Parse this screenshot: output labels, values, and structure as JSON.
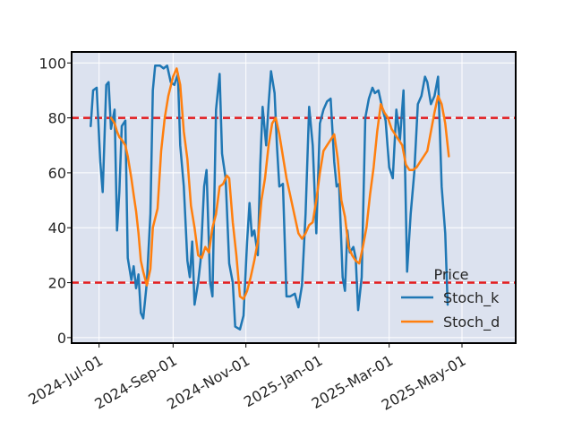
{
  "chart_data": {
    "type": "line",
    "title": "",
    "xlabel": "",
    "ylabel": "",
    "x_range": [
      "2024-06-08",
      "2025-06-15"
    ],
    "ylim": [
      -2,
      104
    ],
    "y_ticks": [
      0,
      20,
      40,
      60,
      80,
      100
    ],
    "x_ticks": [
      {
        "date": "2024-07-01",
        "label": "2024-Jul-01"
      },
      {
        "date": "2024-09-01",
        "label": "2024-Sep-01"
      },
      {
        "date": "2024-11-01",
        "label": "2024-Nov-01"
      },
      {
        "date": "2025-01-01",
        "label": "2025-Jan-01"
      },
      {
        "date": "2025-03-01",
        "label": "2025-Mar-01"
      },
      {
        "date": "2025-05-01",
        "label": "2025-May-01"
      }
    ],
    "grid": true,
    "background": "#dce2ef",
    "legend": {
      "title": "Price",
      "position": "bottom-right"
    },
    "reference_lines": [
      {
        "y": 80,
        "color": "#e31a1c",
        "style": "dashed"
      },
      {
        "y": 20,
        "color": "#e31a1c",
        "style": "dashed"
      }
    ],
    "series": [
      {
        "name": "Stoch_k",
        "color": "#1f77b4",
        "points": [
          [
            "2024-06-24",
            77
          ],
          [
            "2024-06-26",
            90
          ],
          [
            "2024-06-29",
            91
          ],
          [
            "2024-07-02",
            64
          ],
          [
            "2024-07-04",
            53
          ],
          [
            "2024-07-07",
            92
          ],
          [
            "2024-07-09",
            93
          ],
          [
            "2024-07-11",
            76
          ],
          [
            "2024-07-14",
            83
          ],
          [
            "2024-07-16",
            39
          ],
          [
            "2024-07-18",
            53
          ],
          [
            "2024-07-20",
            77
          ],
          [
            "2024-07-23",
            79
          ],
          [
            "2024-07-25",
            29
          ],
          [
            "2024-07-28",
            21
          ],
          [
            "2024-07-30",
            26
          ],
          [
            "2024-08-01",
            18
          ],
          [
            "2024-08-03",
            23
          ],
          [
            "2024-08-05",
            9
          ],
          [
            "2024-08-07",
            7
          ],
          [
            "2024-08-10",
            20
          ],
          [
            "2024-08-13",
            45
          ],
          [
            "2024-08-15",
            90
          ],
          [
            "2024-08-17",
            99
          ],
          [
            "2024-08-21",
            99
          ],
          [
            "2024-08-24",
            98
          ],
          [
            "2024-08-27",
            99
          ],
          [
            "2024-08-30",
            93
          ],
          [
            "2024-09-02",
            92
          ],
          [
            "2024-09-05",
            96
          ],
          [
            "2024-09-07",
            70
          ],
          [
            "2024-09-10",
            55
          ],
          [
            "2024-09-13",
            28
          ],
          [
            "2024-09-15",
            22
          ],
          [
            "2024-09-17",
            35
          ],
          [
            "2024-09-19",
            12
          ],
          [
            "2024-09-22",
            20
          ],
          [
            "2024-09-24",
            28
          ],
          [
            "2024-09-27",
            55
          ],
          [
            "2024-09-29",
            61
          ],
          [
            "2024-10-02",
            20
          ],
          [
            "2024-10-04",
            15
          ],
          [
            "2024-10-07",
            83
          ],
          [
            "2024-10-10",
            96
          ],
          [
            "2024-10-12",
            67
          ],
          [
            "2024-10-15",
            58
          ],
          [
            "2024-10-18",
            27
          ],
          [
            "2024-10-21",
            20
          ],
          [
            "2024-10-23",
            4
          ],
          [
            "2024-10-27",
            3
          ],
          [
            "2024-10-30",
            8
          ],
          [
            "2024-11-02",
            35
          ],
          [
            "2024-11-04",
            49
          ],
          [
            "2024-11-06",
            37
          ],
          [
            "2024-11-08",
            39
          ],
          [
            "2024-11-11",
            30
          ],
          [
            "2024-11-13",
            63
          ],
          [
            "2024-11-15",
            84
          ],
          [
            "2024-11-18",
            70
          ],
          [
            "2024-11-20",
            85
          ],
          [
            "2024-11-22",
            97
          ],
          [
            "2024-11-25",
            89
          ],
          [
            "2024-11-27",
            70
          ],
          [
            "2024-11-29",
            55
          ],
          [
            "2024-12-02",
            56
          ],
          [
            "2024-12-05",
            15
          ],
          [
            "2024-12-08",
            15
          ],
          [
            "2024-12-12",
            16
          ],
          [
            "2024-12-15",
            11
          ],
          [
            "2024-12-18",
            19
          ],
          [
            "2024-12-21",
            45
          ],
          [
            "2024-12-24",
            84
          ],
          [
            "2024-12-27",
            70
          ],
          [
            "2024-12-30",
            38
          ],
          [
            "2025-01-02",
            78
          ],
          [
            "2025-01-05",
            83
          ],
          [
            "2025-01-08",
            86
          ],
          [
            "2025-01-11",
            87
          ],
          [
            "2025-01-14",
            64
          ],
          [
            "2025-01-16",
            55
          ],
          [
            "2025-01-18",
            56
          ],
          [
            "2025-01-21",
            22
          ],
          [
            "2025-01-23",
            17
          ],
          [
            "2025-01-25",
            39
          ],
          [
            "2025-01-27",
            31
          ],
          [
            "2025-01-30",
            33
          ],
          [
            "2025-02-01",
            29
          ],
          [
            "2025-02-03",
            10
          ],
          [
            "2025-02-06",
            22
          ],
          [
            "2025-02-09",
            80
          ],
          [
            "2025-02-12",
            87
          ],
          [
            "2025-02-15",
            91
          ],
          [
            "2025-02-17",
            89
          ],
          [
            "2025-02-20",
            90
          ],
          [
            "2025-02-23",
            84
          ],
          [
            "2025-02-26",
            79
          ],
          [
            "2025-03-01",
            62
          ],
          [
            "2025-03-04",
            58
          ],
          [
            "2025-03-07",
            83
          ],
          [
            "2025-03-10",
            72
          ],
          [
            "2025-03-13",
            90
          ],
          [
            "2025-03-16",
            24
          ],
          [
            "2025-03-19",
            45
          ],
          [
            "2025-03-22",
            60
          ],
          [
            "2025-03-25",
            85
          ],
          [
            "2025-03-28",
            88
          ],
          [
            "2025-03-31",
            95
          ],
          [
            "2025-04-02",
            93
          ],
          [
            "2025-04-05",
            85
          ],
          [
            "2025-04-08",
            88
          ],
          [
            "2025-04-11",
            95
          ],
          [
            "2025-04-14",
            55
          ],
          [
            "2025-04-17",
            38
          ],
          [
            "2025-04-19",
            12
          ]
        ]
      },
      {
        "name": "Stoch_d",
        "color": "#ff7f0e",
        "points": [
          [
            "2024-07-11",
            80
          ],
          [
            "2024-07-14",
            78
          ],
          [
            "2024-07-16",
            75
          ],
          [
            "2024-07-18",
            73
          ],
          [
            "2024-07-20",
            72
          ],
          [
            "2024-07-23",
            70
          ],
          [
            "2024-07-25",
            66
          ],
          [
            "2024-07-28",
            58
          ],
          [
            "2024-07-30",
            52
          ],
          [
            "2024-08-01",
            46
          ],
          [
            "2024-08-03",
            38
          ],
          [
            "2024-08-05",
            28
          ],
          [
            "2024-08-07",
            24
          ],
          [
            "2024-08-10",
            19
          ],
          [
            "2024-08-13",
            25
          ],
          [
            "2024-08-15",
            40
          ],
          [
            "2024-08-19",
            47
          ],
          [
            "2024-08-22",
            68
          ],
          [
            "2024-08-25",
            80
          ],
          [
            "2024-08-28",
            88
          ],
          [
            "2024-09-01",
            95
          ],
          [
            "2024-09-04",
            98
          ],
          [
            "2024-09-07",
            92
          ],
          [
            "2024-09-10",
            75
          ],
          [
            "2024-09-13",
            65
          ],
          [
            "2024-09-16",
            48
          ],
          [
            "2024-09-19",
            40
          ],
          [
            "2024-09-22",
            30
          ],
          [
            "2024-09-25",
            29
          ],
          [
            "2024-09-28",
            33
          ],
          [
            "2024-10-01",
            31
          ],
          [
            "2024-10-04",
            40
          ],
          [
            "2024-10-07",
            45
          ],
          [
            "2024-10-10",
            55
          ],
          [
            "2024-10-13",
            56
          ],
          [
            "2024-10-16",
            59
          ],
          [
            "2024-10-18",
            58
          ],
          [
            "2024-10-21",
            42
          ],
          [
            "2024-10-24",
            30
          ],
          [
            "2024-10-27",
            15
          ],
          [
            "2024-10-30",
            14
          ],
          [
            "2024-11-02",
            17
          ],
          [
            "2024-11-05",
            22
          ],
          [
            "2024-11-08",
            28
          ],
          [
            "2024-11-11",
            35
          ],
          [
            "2024-11-14",
            50
          ],
          [
            "2024-11-17",
            58
          ],
          [
            "2024-11-20",
            70
          ],
          [
            "2024-11-23",
            78
          ],
          [
            "2024-11-26",
            80
          ],
          [
            "2024-11-29",
            74
          ],
          [
            "2024-12-02",
            66
          ],
          [
            "2024-12-05",
            58
          ],
          [
            "2024-12-08",
            52
          ],
          [
            "2024-12-12",
            44
          ],
          [
            "2024-12-15",
            38
          ],
          [
            "2024-12-18",
            36
          ],
          [
            "2024-12-21",
            38
          ],
          [
            "2024-12-24",
            41
          ],
          [
            "2024-12-27",
            42
          ],
          [
            "2024-12-30",
            50
          ],
          [
            "2025-01-02",
            60
          ],
          [
            "2025-01-05",
            68
          ],
          [
            "2025-01-08",
            70
          ],
          [
            "2025-01-11",
            72
          ],
          [
            "2025-01-14",
            74
          ],
          [
            "2025-01-17",
            65
          ],
          [
            "2025-01-20",
            50
          ],
          [
            "2025-01-23",
            44
          ],
          [
            "2025-01-26",
            33
          ],
          [
            "2025-01-29",
            30
          ],
          [
            "2025-02-01",
            28
          ],
          [
            "2025-02-04",
            27
          ],
          [
            "2025-02-07",
            33
          ],
          [
            "2025-02-10",
            40
          ],
          [
            "2025-02-13",
            52
          ],
          [
            "2025-02-16",
            62
          ],
          [
            "2025-02-19",
            75
          ],
          [
            "2025-02-22",
            85
          ],
          [
            "2025-02-25",
            82
          ],
          [
            "2025-02-28",
            80
          ],
          [
            "2025-03-03",
            76
          ],
          [
            "2025-03-06",
            74
          ],
          [
            "2025-03-09",
            72
          ],
          [
            "2025-03-12",
            70
          ],
          [
            "2025-03-15",
            63
          ],
          [
            "2025-03-18",
            61
          ],
          [
            "2025-03-21",
            61
          ],
          [
            "2025-03-24",
            62
          ],
          [
            "2025-03-27",
            64
          ],
          [
            "2025-03-30",
            66
          ],
          [
            "2025-04-02",
            68
          ],
          [
            "2025-04-05",
            75
          ],
          [
            "2025-04-08",
            82
          ],
          [
            "2025-04-11",
            88
          ],
          [
            "2025-04-14",
            85
          ],
          [
            "2025-04-17",
            78
          ],
          [
            "2025-04-20",
            66
          ]
        ]
      }
    ]
  }
}
